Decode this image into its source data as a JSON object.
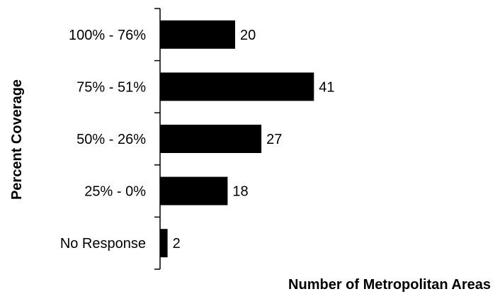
{
  "chart_data": {
    "type": "bar",
    "orientation": "horizontal",
    "categories": [
      "100% - 76%",
      "75% - 51%",
      "50% - 26%",
      "25% - 0%",
      "No Response"
    ],
    "values": [
      20,
      41,
      27,
      18,
      2
    ],
    "xlabel": "Number of Metropolitan Areas",
    "ylabel": "Percent Coverage",
    "xlim": [
      0,
      45
    ],
    "grid": false,
    "legend": "none",
    "bar_color": "#000000",
    "data_labels": true
  }
}
